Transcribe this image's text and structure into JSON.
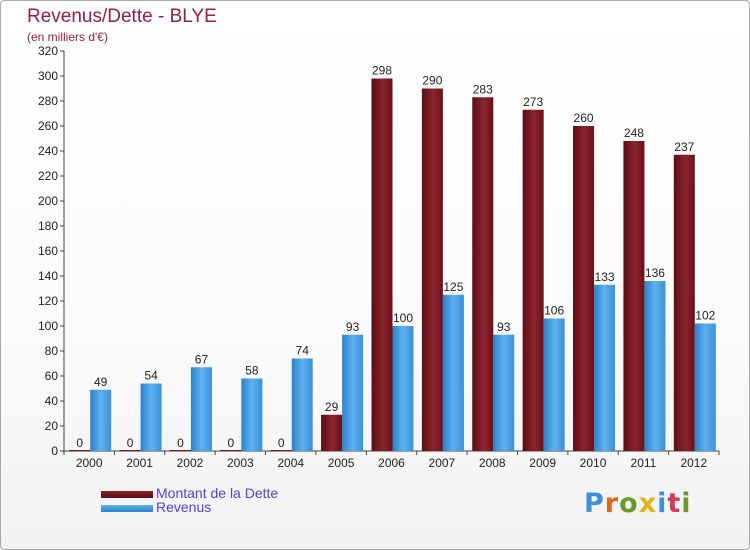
{
  "header": {
    "title": "Revenus/Dette - BLYE",
    "subtitle": "(en milliers d'€)"
  },
  "legend": {
    "items": [
      {
        "label": "Montant de la Dette",
        "color": "#7a1520"
      },
      {
        "label": "Revenus",
        "color": "#3d9ae0"
      }
    ]
  },
  "logo": {
    "text": "Proxiti",
    "letter_colors": [
      "#3d8fd8",
      "#e0661c",
      "#6a9a2a",
      "#e6b01c",
      "#3d8fd8",
      "#d43a5a",
      "#6a9a2a"
    ]
  },
  "chart_data": {
    "type": "bar",
    "title": "Revenus/Dette - BLYE",
    "ylabel": "(en milliers d'€)",
    "xlabel": "",
    "categories": [
      "2000",
      "2001",
      "2002",
      "2003",
      "2004",
      "2005",
      "2006",
      "2007",
      "2008",
      "2009",
      "2010",
      "2011",
      "2012"
    ],
    "series": [
      {
        "name": "Montant de la Dette",
        "color": "#7a1520",
        "values": [
          0,
          0,
          0,
          0,
          0,
          29,
          298,
          290,
          283,
          273,
          260,
          248,
          237
        ]
      },
      {
        "name": "Revenus",
        "color": "#3d9ae0",
        "values": [
          49,
          54,
          67,
          58,
          74,
          93,
          100,
          125,
          93,
          106,
          133,
          136,
          102
        ]
      }
    ],
    "ylim": [
      0,
      320
    ],
    "yticks": [
      0,
      20,
      40,
      60,
      80,
      100,
      120,
      140,
      160,
      180,
      200,
      220,
      240,
      260,
      280,
      300,
      320
    ],
    "grid": false,
    "legend_position": "bottom-left"
  }
}
